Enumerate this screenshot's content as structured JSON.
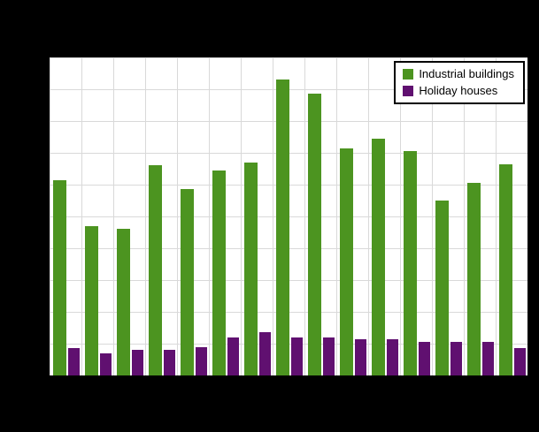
{
  "figure": {
    "background": "#000000",
    "plot_background": "#ffffff",
    "grid_color": "#d9d9d9"
  },
  "legend": {
    "items": [
      {
        "label": "Industrial buildings",
        "color": "#4c9420"
      },
      {
        "label": "Holiday houses",
        "color": "#601070"
      }
    ]
  },
  "chart_data": {
    "type": "bar",
    "categories": [
      "",
      "",
      "",
      "",
      "",
      "",
      "",
      "",
      "",
      "",
      "",
      "",
      "",
      "",
      ""
    ],
    "series": [
      {
        "name": "Industrial buildings",
        "color": "#4c9420",
        "values": [
          615,
          470,
          460,
          660,
          585,
          645,
          670,
          930,
          885,
          715,
          745,
          705,
          550,
          605,
          665
        ]
      },
      {
        "name": "Holiday houses",
        "color": "#601070",
        "values": [
          85,
          70,
          80,
          80,
          90,
          120,
          135,
          120,
          120,
          115,
          115,
          105,
          105,
          105,
          85
        ]
      }
    ],
    "title": "",
    "xlabel": "",
    "ylabel": "",
    "ylim": [
      0,
      1000
    ],
    "grid": true,
    "legend_position": "top-right",
    "x_tick_labels_visible": false,
    "y_tick_labels_visible": false
  }
}
